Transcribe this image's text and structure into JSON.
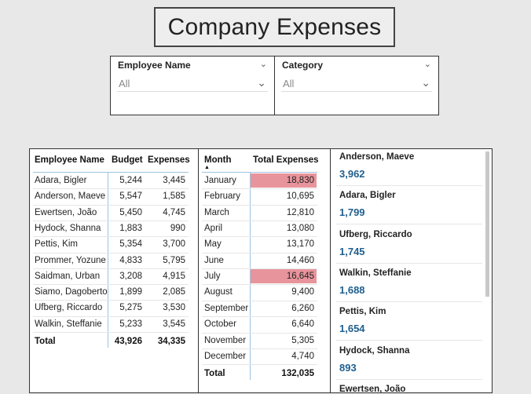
{
  "title": "Company Expenses",
  "slicers": {
    "employee": {
      "label": "Employee Name",
      "value": "All"
    },
    "category": {
      "label": "Category",
      "value": "All"
    }
  },
  "employee_table": {
    "headers": [
      "Employee Name",
      "Budget",
      "Expenses"
    ],
    "rows": [
      [
        "Adara, Bigler",
        "5,244",
        "3,445"
      ],
      [
        "Anderson, Maeve",
        "5,547",
        "1,585"
      ],
      [
        "Ewertsen, João",
        "5,450",
        "4,745"
      ],
      [
        "Hydock, Shanna",
        "1,883",
        "990"
      ],
      [
        "Pettis, Kim",
        "5,354",
        "3,700"
      ],
      [
        "Prommer, Yozune",
        "4,833",
        "5,795"
      ],
      [
        "Saidman, Urban",
        "3,208",
        "4,915"
      ],
      [
        "Siamo, Dagoberto",
        "1,899",
        "2,085"
      ],
      [
        "Ufberg, Riccardo",
        "5,275",
        "3,530"
      ],
      [
        "Walkin, Steffanie",
        "5,233",
        "3,545"
      ]
    ],
    "total": [
      "Total",
      "43,926",
      "34,335"
    ]
  },
  "month_table": {
    "headers": [
      "Month",
      "Total Expenses"
    ],
    "rows": [
      [
        "January",
        "18,830"
      ],
      [
        "February",
        "10,695"
      ],
      [
        "March",
        "12,810"
      ],
      [
        "April",
        "13,080"
      ],
      [
        "May",
        "13,170"
      ],
      [
        "June",
        "14,460"
      ],
      [
        "July",
        "16,645"
      ],
      [
        "August",
        "9,400"
      ],
      [
        "September",
        "6,260"
      ],
      [
        "October",
        "6,640"
      ],
      [
        "November",
        "5,305"
      ],
      [
        "December",
        "4,740"
      ]
    ],
    "highlighted": [
      "January",
      "July"
    ],
    "highlight_color": "#e8949c",
    "total": [
      "Total",
      "132,035"
    ]
  },
  "cards": [
    {
      "name": "Anderson, Maeve",
      "value": "3,962"
    },
    {
      "name": "Adara, Bigler",
      "value": "1,799"
    },
    {
      "name": "Ufberg, Riccardo",
      "value": "1,745"
    },
    {
      "name": "Walkin, Steffanie",
      "value": "1,688"
    },
    {
      "name": "Pettis, Kim",
      "value": "1,654"
    },
    {
      "name": "Hydock, Shanna",
      "value": "893"
    },
    {
      "name": "Ewertsen, João",
      "value": ""
    }
  ],
  "colors": {
    "card_value": "#1f5f8f",
    "accent_line": "#9ec3e0"
  }
}
